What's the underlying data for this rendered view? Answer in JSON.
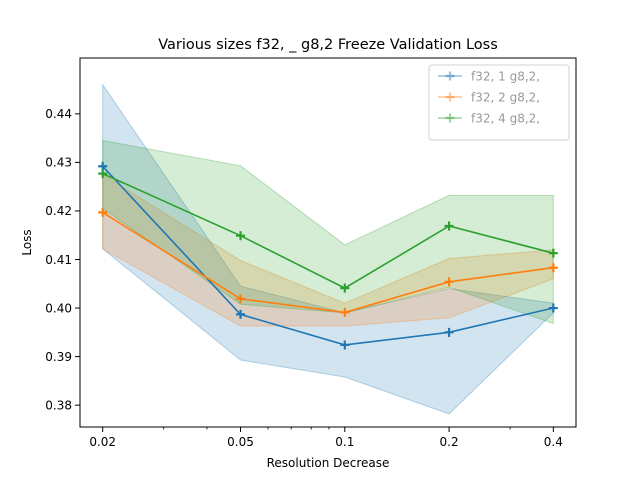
{
  "chart_data": {
    "type": "line",
    "title": "Various sizes f32, _ g8,2 Freeze Validation Loss",
    "xlabel": "Resolution Decrease",
    "ylabel": "Loss",
    "xscale": "log",
    "x": [
      0.02,
      0.05,
      0.1,
      0.2,
      0.4
    ],
    "x_tick_labels": [
      "0.02",
      "0.05",
      "0.1",
      "0.2",
      "0.4"
    ],
    "y_ticks": [
      0.38,
      0.39,
      0.4,
      0.41,
      0.42,
      0.43,
      0.44
    ],
    "y_tick_labels": [
      "0.38",
      "0.39",
      "0.40",
      "0.41",
      "0.42",
      "0.43",
      "0.44"
    ],
    "xlim": [
      0.0172,
      0.465
    ],
    "ylim": [
      0.3755,
      0.4515
    ],
    "grid": false,
    "legend_position": "top-right",
    "series": [
      {
        "name": "f32, 1 g8,2,",
        "color": "#1f77b4",
        "values": [
          0.4292,
          0.3987,
          0.3924,
          0.395,
          0.4
        ],
        "lower": [
          0.4122,
          0.3893,
          0.3858,
          0.3782,
          0.399
        ],
        "upper": [
          0.446,
          0.4045,
          0.399,
          0.404,
          0.401
        ]
      },
      {
        "name": "f32, 2 g8,2,",
        "color": "#ff7f0e",
        "values": [
          0.4197,
          0.4019,
          0.3991,
          0.4054,
          0.4083
        ],
        "lower": [
          0.4122,
          0.3963,
          0.3963,
          0.398,
          0.406
        ],
        "upper": [
          0.4275,
          0.4098,
          0.401,
          0.4102,
          0.412
        ]
      },
      {
        "name": "f32, 4 g8,2,",
        "color": "#2ca02c",
        "values": [
          0.4277,
          0.4149,
          0.4041,
          0.4169,
          0.4113
        ],
        "lower": [
          0.4205,
          0.4008,
          0.399,
          0.4043,
          0.3968
        ],
        "upper": [
          0.4345,
          0.4293,
          0.413,
          0.4232,
          0.4232
        ]
      }
    ]
  }
}
